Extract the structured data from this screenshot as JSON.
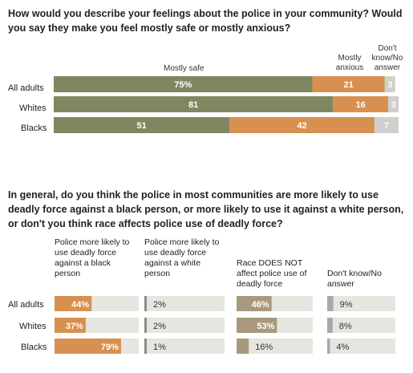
{
  "chart_data": [
    {
      "type": "bar",
      "stacked": true,
      "orientation": "horizontal",
      "title": "How would you describe your feelings about the police in your community? Would you say they make you feel mostly safe or mostly anxious?",
      "categories": [
        "All adults",
        "Whites",
        "Blacks"
      ],
      "series": [
        {
          "name": "Mostly safe",
          "values": [
            75,
            81,
            51
          ],
          "labels": [
            "75%",
            "81",
            "51"
          ],
          "color": "#7f8760"
        },
        {
          "name": "Mostly anxious",
          "values": [
            21,
            16,
            42
          ],
          "labels": [
            "21",
            "16",
            "42"
          ],
          "color": "#d7904f"
        },
        {
          "name": "Don't know/No answer",
          "values": [
            3,
            3,
            7
          ],
          "labels": [
            "3",
            "3",
            "7"
          ],
          "color": "#cfcfcb"
        }
      ],
      "xlim": [
        0,
        100
      ]
    },
    {
      "type": "bar",
      "orientation": "horizontal",
      "title": "In general, do you think the police in most communities are more likely to use deadly force against a black person, or more likely to use it against a white person, or don't you think race affects police use of deadly force?",
      "categories": [
        "All adults",
        "Whites",
        "Blacks"
      ],
      "series": [
        {
          "name": "Police more likely to use deadly force against a black person",
          "values": [
            44,
            37,
            79
          ],
          "labels": [
            "44%",
            "37%",
            "79%"
          ],
          "color": "#d7904f"
        },
        {
          "name": "Police more likely to use deadly force against a white person",
          "values": [
            2,
            2,
            1
          ],
          "labels": [
            "2%",
            "2%",
            "1%"
          ],
          "color": "#8a8a8a"
        },
        {
          "name": "Race DOES NOT affect police use of deadly force",
          "values": [
            46,
            53,
            16
          ],
          "labels": [
            "46%",
            "53%",
            "16%"
          ],
          "color": "#a8997e"
        },
        {
          "name": "Don't know/No answer",
          "values": [
            9,
            8,
            4
          ],
          "labels": [
            "9%",
            "8%",
            "4%"
          ],
          "color": "#a9a9a9"
        }
      ],
      "panel_max": 100
    }
  ],
  "headers": {
    "safe": "Mostly safe",
    "anxious": "Mostly anxious",
    "dk": "Don't know/No answer"
  },
  "colors": {
    "track": "#e6e5e0",
    "label_text": "#ffffff",
    "dark_text": "#333333"
  }
}
